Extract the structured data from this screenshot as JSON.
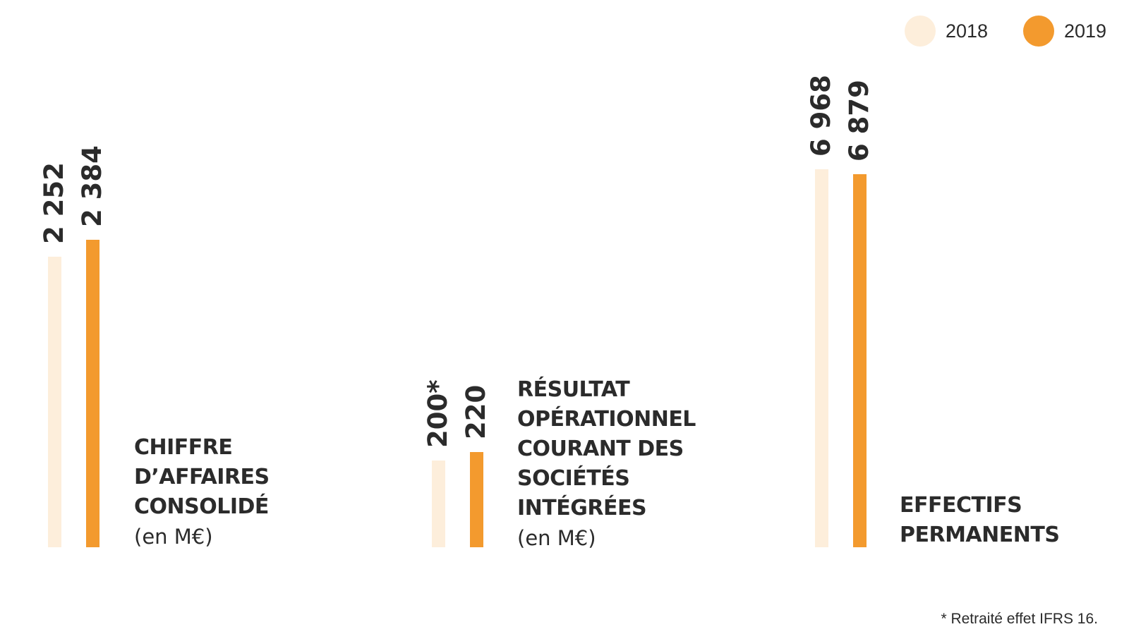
{
  "legend": {
    "items": [
      {
        "label": "2018",
        "color": "#fdeedb"
      },
      {
        "label": "2019",
        "color": "#f39a2e"
      }
    ]
  },
  "chart_data": [
    {
      "type": "bar",
      "categories": [
        "2018",
        "2019"
      ],
      "values": [
        2252,
        2384
      ],
      "value_labels": [
        "2 252",
        "2 384"
      ],
      "title_lines": [
        "CHIFFRE",
        "D’AFFAIRES",
        "CONSOLIDÉ"
      ],
      "unit": "(en M€)",
      "colors": [
        "#fdeedb",
        "#f39a2e"
      ]
    },
    {
      "type": "bar",
      "categories": [
        "2018",
        "2019"
      ],
      "values": [
        200,
        220
      ],
      "value_labels": [
        "200*",
        "220"
      ],
      "title_lines": [
        "RÉSULTAT",
        "OPÉRATIONNEL",
        "COURANT DES",
        "SOCIÉTÉS",
        "INTÉGRÉES"
      ],
      "unit": "(en M€)",
      "colors": [
        "#fdeedb",
        "#f39a2e"
      ]
    },
    {
      "type": "bar",
      "categories": [
        "2018",
        "2019"
      ],
      "values": [
        6968,
        6879
      ],
      "value_labels": [
        "6 968",
        "6 879"
      ],
      "title_lines": [
        "EFFECTIFS",
        "PERMANENTS"
      ],
      "unit": "",
      "colors": [
        "#fdeedb",
        "#f39a2e"
      ]
    }
  ],
  "footnote": "* Retraité effet IFRS 16."
}
